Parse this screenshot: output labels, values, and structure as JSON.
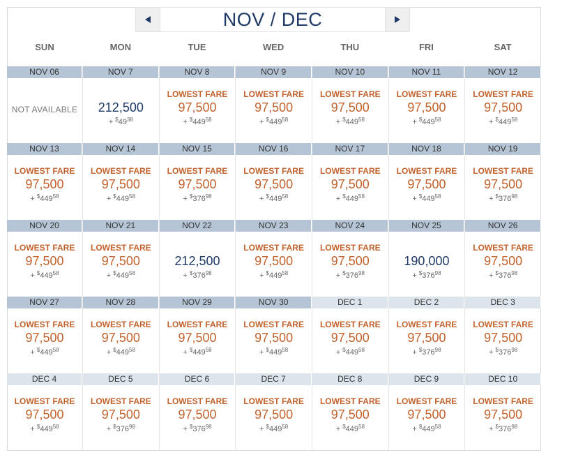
{
  "nav": {
    "title": "NOV / DEC"
  },
  "weekdays": [
    "SUN",
    "MON",
    "TUE",
    "WED",
    "THU",
    "FRI",
    "SAT"
  ],
  "weeks": [
    [
      {
        "date": "NOV 06",
        "month": "nov",
        "status": "NOT AVAILABLE"
      },
      {
        "date": "NOV 7",
        "month": "nov",
        "flag": "",
        "miles": "212,500",
        "tax_plus": "+",
        "tax_currency": "$",
        "tax_dollars": "49",
        "tax_cents": "38"
      },
      {
        "date": "NOV 8",
        "month": "nov",
        "flag": "LOWEST FARE",
        "miles": "97,500",
        "tax_plus": "+",
        "tax_currency": "$",
        "tax_dollars": "449",
        "tax_cents": "58"
      },
      {
        "date": "NOV 9",
        "month": "nov",
        "flag": "LOWEST FARE",
        "miles": "97,500",
        "tax_plus": "+",
        "tax_currency": "$",
        "tax_dollars": "449",
        "tax_cents": "58"
      },
      {
        "date": "NOV 10",
        "month": "nov",
        "flag": "LOWEST FARE",
        "miles": "97,500",
        "tax_plus": "+",
        "tax_currency": "$",
        "tax_dollars": "449",
        "tax_cents": "58"
      },
      {
        "date": "NOV 11",
        "month": "nov",
        "flag": "LOWEST FARE",
        "miles": "97,500",
        "tax_plus": "+",
        "tax_currency": "$",
        "tax_dollars": "449",
        "tax_cents": "58"
      },
      {
        "date": "NOV 12",
        "month": "nov",
        "flag": "LOWEST FARE",
        "miles": "97,500",
        "tax_plus": "+",
        "tax_currency": "$",
        "tax_dollars": "449",
        "tax_cents": "58"
      }
    ],
    [
      {
        "date": "NOV 13",
        "month": "nov",
        "flag": "LOWEST FARE",
        "miles": "97,500",
        "tax_plus": "+",
        "tax_currency": "$",
        "tax_dollars": "449",
        "tax_cents": "58"
      },
      {
        "date": "NOV 14",
        "month": "nov",
        "flag": "LOWEST FARE",
        "miles": "97,500",
        "tax_plus": "+",
        "tax_currency": "$",
        "tax_dollars": "449",
        "tax_cents": "58"
      },
      {
        "date": "NOV 15",
        "month": "nov",
        "flag": "LOWEST FARE",
        "miles": "97,500",
        "tax_plus": "+",
        "tax_currency": "$",
        "tax_dollars": "376",
        "tax_cents": "98"
      },
      {
        "date": "NOV 16",
        "month": "nov",
        "flag": "LOWEST FARE",
        "miles": "97,500",
        "tax_plus": "+",
        "tax_currency": "$",
        "tax_dollars": "449",
        "tax_cents": "58"
      },
      {
        "date": "NOV 17",
        "month": "nov",
        "flag": "LOWEST FARE",
        "miles": "97,500",
        "tax_plus": "+",
        "tax_currency": "$",
        "tax_dollars": "449",
        "tax_cents": "58"
      },
      {
        "date": "NOV 18",
        "month": "nov",
        "flag": "LOWEST FARE",
        "miles": "97,500",
        "tax_plus": "+",
        "tax_currency": "$",
        "tax_dollars": "449",
        "tax_cents": "58"
      },
      {
        "date": "NOV 19",
        "month": "nov",
        "flag": "LOWEST FARE",
        "miles": "97,500",
        "tax_plus": "+",
        "tax_currency": "$",
        "tax_dollars": "376",
        "tax_cents": "98"
      }
    ],
    [
      {
        "date": "NOV 20",
        "month": "nov",
        "flag": "LOWEST FARE",
        "miles": "97,500",
        "tax_plus": "+",
        "tax_currency": "$",
        "tax_dollars": "449",
        "tax_cents": "58"
      },
      {
        "date": "NOV 21",
        "month": "nov",
        "flag": "LOWEST FARE",
        "miles": "97,500",
        "tax_plus": "+",
        "tax_currency": "$",
        "tax_dollars": "449",
        "tax_cents": "58"
      },
      {
        "date": "NOV 22",
        "month": "nov",
        "flag": "",
        "miles": "212,500",
        "tax_plus": "+",
        "tax_currency": "$",
        "tax_dollars": "376",
        "tax_cents": "98"
      },
      {
        "date": "NOV 23",
        "month": "nov",
        "flag": "LOWEST FARE",
        "miles": "97,500",
        "tax_plus": "+",
        "tax_currency": "$",
        "tax_dollars": "449",
        "tax_cents": "58"
      },
      {
        "date": "NOV 24",
        "month": "nov",
        "flag": "LOWEST FARE",
        "miles": "97,500",
        "tax_plus": "+",
        "tax_currency": "$",
        "tax_dollars": "376",
        "tax_cents": "98"
      },
      {
        "date": "NOV 25",
        "month": "nov",
        "flag": "",
        "miles": "190,000",
        "tax_plus": "+",
        "tax_currency": "$",
        "tax_dollars": "376",
        "tax_cents": "98"
      },
      {
        "date": "NOV 26",
        "month": "nov",
        "flag": "LOWEST FARE",
        "miles": "97,500",
        "tax_plus": "+",
        "tax_currency": "$",
        "tax_dollars": "376",
        "tax_cents": "98"
      }
    ],
    [
      {
        "date": "NOV 27",
        "month": "nov",
        "flag": "LOWEST FARE",
        "miles": "97,500",
        "tax_plus": "+",
        "tax_currency": "$",
        "tax_dollars": "449",
        "tax_cents": "58"
      },
      {
        "date": "NOV 28",
        "month": "nov",
        "flag": "LOWEST FARE",
        "miles": "97,500",
        "tax_plus": "+",
        "tax_currency": "$",
        "tax_dollars": "449",
        "tax_cents": "58"
      },
      {
        "date": "NOV 29",
        "month": "nov",
        "flag": "LOWEST FARE",
        "miles": "97,500",
        "tax_plus": "+",
        "tax_currency": "$",
        "tax_dollars": "449",
        "tax_cents": "58"
      },
      {
        "date": "NOV 30",
        "month": "nov",
        "flag": "LOWEST FARE",
        "miles": "97,500",
        "tax_plus": "+",
        "tax_currency": "$",
        "tax_dollars": "449",
        "tax_cents": "58"
      },
      {
        "date": "DEC 1",
        "month": "dec",
        "flag": "LOWEST FARE",
        "miles": "97,500",
        "tax_plus": "+",
        "tax_currency": "$",
        "tax_dollars": "449",
        "tax_cents": "58"
      },
      {
        "date": "DEC 2",
        "month": "dec",
        "flag": "LOWEST FARE",
        "miles": "97,500",
        "tax_plus": "+",
        "tax_currency": "$",
        "tax_dollars": "376",
        "tax_cents": "98"
      },
      {
        "date": "DEC 3",
        "month": "dec",
        "flag": "LOWEST FARE",
        "miles": "97,500",
        "tax_plus": "+",
        "tax_currency": "$",
        "tax_dollars": "376",
        "tax_cents": "98"
      }
    ],
    [
      {
        "date": "DEC 4",
        "month": "dec",
        "flag": "LOWEST FARE",
        "miles": "97,500",
        "tax_plus": "+",
        "tax_currency": "$",
        "tax_dollars": "449",
        "tax_cents": "58"
      },
      {
        "date": "DEC 5",
        "month": "dec",
        "flag": "LOWEST FARE",
        "miles": "97,500",
        "tax_plus": "+",
        "tax_currency": "$",
        "tax_dollars": "376",
        "tax_cents": "98"
      },
      {
        "date": "DEC 6",
        "month": "dec",
        "flag": "LOWEST FARE",
        "miles": "97,500",
        "tax_plus": "+",
        "tax_currency": "$",
        "tax_dollars": "376",
        "tax_cents": "98"
      },
      {
        "date": "DEC 7",
        "month": "dec",
        "flag": "LOWEST FARE",
        "miles": "97,500",
        "tax_plus": "+",
        "tax_currency": "$",
        "tax_dollars": "449",
        "tax_cents": "58"
      },
      {
        "date": "DEC 8",
        "month": "dec",
        "flag": "LOWEST FARE",
        "miles": "97,500",
        "tax_plus": "+",
        "tax_currency": "$",
        "tax_dollars": "449",
        "tax_cents": "58"
      },
      {
        "date": "DEC 9",
        "month": "dec",
        "flag": "LOWEST FARE",
        "miles": "97,500",
        "tax_plus": "+",
        "tax_currency": "$",
        "tax_dollars": "449",
        "tax_cents": "58"
      },
      {
        "date": "DEC 10",
        "month": "dec",
        "flag": "LOWEST FARE",
        "miles": "97,500",
        "tax_plus": "+",
        "tax_currency": "$",
        "tax_dollars": "376",
        "tax_cents": "98"
      }
    ]
  ],
  "icons": {
    "prev": "triangle-left-icon",
    "next": "triangle-right-icon"
  },
  "colors": {
    "navy": "#1f3a66",
    "fare_orange": "#c2622d",
    "nov_header": "#b6c5d6",
    "dec_header": "#dde5ec"
  }
}
